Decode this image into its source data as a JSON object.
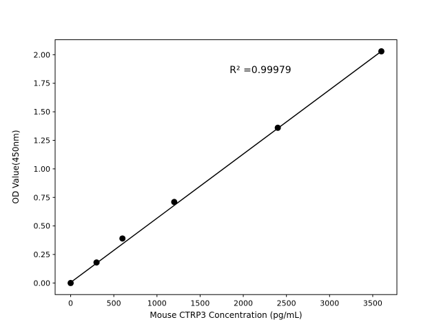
{
  "chart_data": {
    "type": "scatter",
    "title": "",
    "xlabel": "Mouse CTRP3 Concentration (pg/mL)",
    "ylabel": "OD Value(450nm)",
    "annotation": "R² =0.99979",
    "x": [
      0,
      300,
      600,
      1200,
      2400,
      3600
    ],
    "y": [
      0.0,
      0.18,
      0.39,
      0.71,
      1.36,
      2.03
    ],
    "fit_line": {
      "x": [
        0,
        3600
      ],
      "y": [
        0.005,
        2.03
      ]
    },
    "xlim": [
      -180,
      3780
    ],
    "ylim": [
      -0.1015,
      2.1315
    ],
    "xticks": [
      0,
      500,
      1000,
      1500,
      2000,
      2500,
      3000,
      3500
    ],
    "yticks": [
      0.0,
      0.25,
      0.5,
      0.75,
      1.0,
      1.25,
      1.5,
      1.75,
      2.0
    ],
    "grid": false,
    "legend": "none",
    "marker_color": "#000000",
    "line_color": "#000000",
    "axis_color": "#000000"
  }
}
